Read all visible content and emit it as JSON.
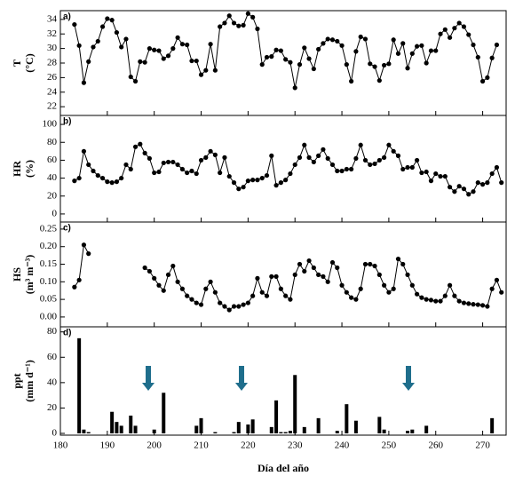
{
  "chart_data": [
    {
      "type": "line",
      "panel_label": "a)",
      "ylabel": [
        "T",
        "(°C)"
      ],
      "color": "#000000",
      "x": [
        183,
        184,
        185,
        186,
        187,
        188,
        189,
        190,
        191,
        192,
        193,
        194,
        195,
        196,
        197,
        198,
        199,
        200,
        201,
        202,
        203,
        204,
        205,
        206,
        207,
        208,
        209,
        210,
        211,
        212,
        213,
        214,
        215,
        216,
        217,
        218,
        219,
        220,
        221,
        222,
        223,
        224,
        225,
        226,
        227,
        228,
        229,
        230,
        231,
        232,
        233,
        234,
        235,
        236,
        237,
        238,
        239,
        240,
        241,
        242,
        243,
        244,
        245,
        246,
        247,
        248,
        249,
        250,
        251,
        252,
        253,
        254,
        255,
        256,
        257,
        258,
        259,
        260,
        261,
        262,
        263,
        264,
        265,
        266,
        267,
        268,
        269,
        270,
        271,
        272,
        273
      ],
      "values": [
        33.3,
        30.4,
        25.3,
        28.2,
        30.2,
        31.0,
        33.0,
        34.1,
        33.9,
        32.2,
        30.2,
        31.3,
        26.1,
        25.5,
        28.2,
        28.1,
        30.0,
        29.8,
        29.7,
        28.6,
        29.0,
        30.0,
        31.5,
        30.6,
        30.5,
        28.3,
        28.3,
        26.4,
        27.0,
        30.6,
        27.0,
        33.0,
        33.5,
        34.5,
        33.5,
        33.1,
        33.2,
        34.8,
        34.3,
        32.7,
        27.8,
        28.8,
        28.9,
        29.8,
        29.7,
        28.5,
        28.1,
        24.6,
        27.8,
        30.1,
        28.6,
        27.2,
        29.9,
        30.7,
        31.3,
        31.2,
        31.0,
        30.4,
        27.8,
        25.5,
        29.6,
        31.6,
        31.3,
        27.9,
        27.5,
        25.6,
        27.7,
        27.9,
        31.2,
        29.3,
        30.7,
        27.3,
        29.3,
        30.3,
        30.4,
        28.0,
        29.7,
        29.7,
        32.0,
        32.6,
        31.5,
        32.8,
        33.5,
        33.0,
        31.9,
        30.5,
        28.8,
        25.5,
        26.0,
        28.7,
        30.5
      ],
      "xlim": [
        180,
        275
      ],
      "xticks": [
        180,
        190,
        200,
        210,
        220,
        230,
        240,
        250,
        260,
        270
      ],
      "ylim": [
        20.8,
        35.2
      ],
      "yticks": [
        22,
        24,
        26,
        28,
        30,
        32,
        34
      ]
    },
    {
      "type": "line",
      "panel_label": "b)",
      "ylabel": [
        "HR",
        "(%)"
      ],
      "color": "#000000",
      "x": [
        183,
        184,
        185,
        186,
        187,
        188,
        189,
        190,
        191,
        192,
        193,
        194,
        195,
        196,
        197,
        198,
        199,
        200,
        201,
        202,
        203,
        204,
        205,
        206,
        207,
        208,
        209,
        210,
        211,
        212,
        213,
        214,
        215,
        216,
        217,
        218,
        219,
        220,
        221,
        222,
        223,
        224,
        225,
        226,
        227,
        228,
        229,
        230,
        231,
        232,
        233,
        234,
        235,
        236,
        237,
        238,
        239,
        240,
        241,
        242,
        243,
        244,
        245,
        246,
        247,
        248,
        249,
        250,
        251,
        252,
        253,
        254,
        255,
        256,
        257,
        258,
        259,
        260,
        261,
        262,
        263,
        264,
        265,
        266,
        267,
        268,
        269,
        270,
        271,
        272,
        273,
        274
      ],
      "values": [
        37,
        40,
        70,
        55,
        48,
        43,
        40,
        36,
        35,
        36,
        40,
        55,
        50,
        75,
        78,
        68,
        62,
        46,
        47,
        57,
        58,
        58,
        55,
        50,
        46,
        48,
        45,
        60,
        63,
        70,
        66,
        46,
        63,
        42,
        35,
        28,
        30,
        37,
        38,
        38,
        40,
        43,
        65,
        32,
        35,
        38,
        45,
        55,
        63,
        77,
        63,
        58,
        65,
        72,
        62,
        55,
        48,
        48,
        50,
        50,
        62,
        77,
        60,
        55,
        56,
        60,
        63,
        77,
        70,
        65,
        50,
        52,
        52,
        60,
        46,
        47,
        37,
        45,
        42,
        42,
        30,
        25,
        31,
        28,
        22,
        25,
        35,
        33,
        35,
        45,
        52,
        35
      ],
      "xlim": [
        180,
        275
      ],
      "xticks": [
        180,
        190,
        200,
        210,
        220,
        230,
        240,
        250,
        260,
        270
      ],
      "ylim": [
        -9,
        110
      ],
      "yticks": [
        0,
        20,
        40,
        60,
        80,
        100
      ]
    },
    {
      "type": "line",
      "panel_label": "c)",
      "ylabel": [
        "HS",
        "(m³ m⁻³)"
      ],
      "color": "#000000",
      "x": [
        183,
        184,
        185,
        186,
        187,
        188,
        189,
        190,
        191,
        192,
        193,
        194,
        195,
        196,
        197,
        198,
        199,
        200,
        201,
        202,
        203,
        204,
        205,
        206,
        207,
        208,
        209,
        210,
        211,
        212,
        213,
        214,
        215,
        216,
        217,
        218,
        219,
        220,
        221,
        222,
        223,
        224,
        225,
        226,
        227,
        228,
        229,
        230,
        231,
        232,
        233,
        234,
        235,
        236,
        237,
        238,
        239,
        240,
        241,
        242,
        243,
        244,
        245,
        246,
        247,
        248,
        249,
        250,
        251,
        252,
        253,
        254,
        255,
        256,
        257,
        258,
        259,
        260,
        261,
        262,
        263,
        264,
        265,
        266,
        267,
        268,
        269,
        270,
        271,
        272,
        273,
        274
      ],
      "values": [
        0.085,
        0.105,
        0.205,
        0.18,
        null,
        null,
        null,
        null,
        null,
        null,
        null,
        null,
        null,
        null,
        null,
        0.14,
        0.13,
        0.11,
        0.09,
        0.075,
        0.12,
        0.145,
        0.1,
        0.08,
        0.06,
        0.05,
        0.04,
        0.035,
        0.08,
        0.1,
        0.07,
        0.04,
        0.03,
        0.02,
        0.03,
        0.03,
        0.035,
        0.04,
        0.06,
        0.11,
        0.07,
        0.06,
        0.115,
        0.115,
        0.08,
        0.06,
        0.05,
        0.12,
        0.15,
        0.13,
        0.16,
        0.14,
        0.12,
        0.115,
        0.1,
        0.155,
        0.14,
        0.09,
        0.07,
        0.055,
        0.05,
        0.08,
        0.15,
        0.15,
        0.145,
        0.12,
        0.09,
        0.07,
        0.08,
        0.165,
        0.15,
        0.12,
        0.09,
        0.065,
        0.055,
        0.05,
        0.048,
        0.045,
        0.045,
        0.06,
        0.09,
        0.06,
        0.045,
        0.04,
        0.038,
        0.036,
        0.035,
        0.033,
        0.03,
        0.08,
        0.105,
        0.07
      ],
      "xlim": [
        180,
        275
      ],
      "xticks": [
        180,
        190,
        200,
        210,
        220,
        230,
        240,
        250,
        260,
        270
      ],
      "ylim": [
        -0.028,
        0.27
      ],
      "yticks": [
        {
          "value": 0,
          "label": "0.00"
        },
        {
          "value": 0.05,
          "label": "0.05"
        },
        {
          "value": 0.1,
          "label": "0.10"
        },
        {
          "value": 0.15,
          "label": "0.15"
        },
        {
          "value": 0.2,
          "label": "0.20"
        },
        {
          "value": 0.25,
          "label": "0.25"
        }
      ]
    },
    {
      "type": "bar",
      "panel_label": "d)",
      "ylabel": [
        "ppt",
        "(mm d⁻¹)"
      ],
      "color": "#000000",
      "x": [
        184,
        185,
        186,
        191,
        192,
        193,
        195,
        196,
        200,
        202,
        209,
        210,
        213,
        217,
        218,
        220,
        221,
        225,
        226,
        227,
        228,
        229,
        230,
        232,
        235,
        239,
        241,
        243,
        248,
        249,
        254,
        255,
        258,
        272
      ],
      "values": [
        75,
        3,
        1,
        17,
        9,
        6,
        14,
        6,
        3,
        32,
        6,
        12,
        1,
        1,
        9,
        7,
        11,
        5,
        26,
        1,
        1,
        2,
        46,
        5,
        12,
        2,
        23,
        10,
        13,
        3,
        2,
        3,
        6,
        12
      ],
      "xlim": [
        180,
        275
      ],
      "xticks": [
        180,
        190,
        200,
        210,
        220,
        230,
        240,
        250,
        260,
        270
      ],
      "ylim": [
        -1.4,
        84
      ],
      "yticks": [
        0,
        20,
        40,
        60,
        80
      ],
      "xlabel": "Día del año"
    }
  ]
}
